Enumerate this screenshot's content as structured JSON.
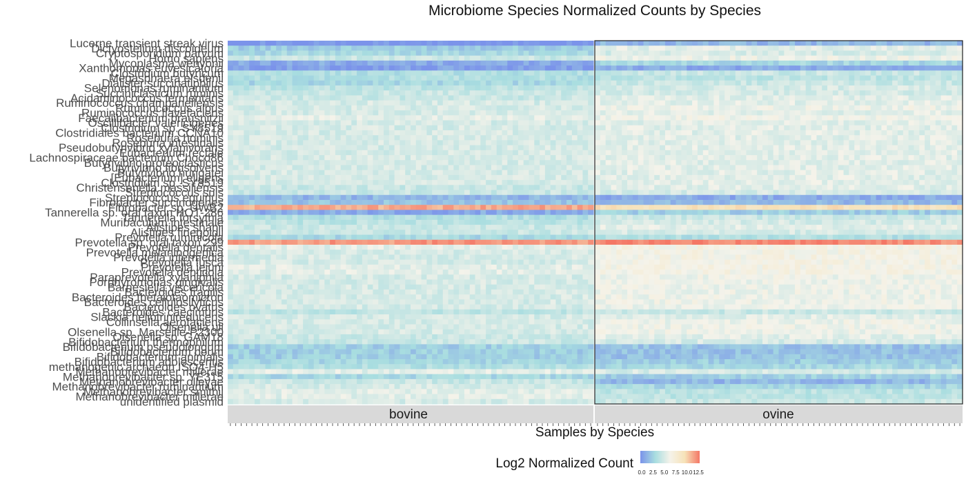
{
  "chart_data": {
    "type": "heatmap",
    "title": "Microbiome Species Normalized Counts by Species",
    "xlabel": "Samples by Species",
    "ylabel": "",
    "facets": [
      {
        "label": "bovine",
        "n_samples": 68
      },
      {
        "label": "ovine",
        "n_samples": 68
      }
    ],
    "colorbar": {
      "title": "Log2 Normalized Count",
      "range": [
        0,
        12.5
      ],
      "ticks": [
        0.0,
        2.5,
        5.0,
        7.5,
        10.0,
        12.5
      ],
      "tick_labels": [
        "0.0",
        "2.5",
        "5.0",
        "7.5",
        "10.0",
        "12.5"
      ],
      "colors": [
        "#7b93ea",
        "#a8dde0",
        "#f5f3ea",
        "#f6e2b8",
        "#f47766"
      ]
    },
    "rows": [
      {
        "species": "Lucerne transient streak virus",
        "bovine": 0.0,
        "ovine": 1.5
      },
      {
        "species": "Dictyostelium discoideum",
        "bovine": 2.5,
        "ovine": 5.5
      },
      {
        "species": "Cryptosporidium parvum",
        "bovine": 3.0,
        "ovine": 5.0
      },
      {
        "species": "Homo sapiens",
        "bovine": 4.5,
        "ovine": 6.0
      },
      {
        "species": "Mycoplasma wenyonii",
        "bovine": 1.0,
        "ovine": 3.0
      },
      {
        "species": "Xanthomonas euvesicatoria",
        "bovine": 0.5,
        "ovine": 1.0
      },
      {
        "species": "Clostridium butyricum",
        "bovine": 3.5,
        "ovine": 4.5
      },
      {
        "species": "Megasphaera elsdenii",
        "bovine": 3.5,
        "ovine": 4.0
      },
      {
        "species": "Dialister succinatiphilus",
        "bovine": 3.0,
        "ovine": 4.5
      },
      {
        "species": "Selenomonas ruminantium",
        "bovine": 4.0,
        "ovine": 5.0
      },
      {
        "species": "Succiniclasticum ruminis",
        "bovine": 4.5,
        "ovine": 5.0
      },
      {
        "species": "Acidaminococcus fermentans",
        "bovine": 4.5,
        "ovine": 5.5
      },
      {
        "species": "Ruminococcus champanellensis",
        "bovine": 5.0,
        "ovine": 5.5
      },
      {
        "species": "Ruminococcus albus",
        "bovine": 5.0,
        "ovine": 6.0
      },
      {
        "species": "Ruminococcus flavefaciens",
        "bovine": 5.0,
        "ovine": 5.5
      },
      {
        "species": "Faecalibacterium prausnitzii",
        "bovine": 5.5,
        "ovine": 6.0
      },
      {
        "species": "Oscillibacter valericigenes",
        "bovine": 5.0,
        "ovine": 5.5
      },
      {
        "species": "Clostridium sp. SY8519",
        "bovine": 5.0,
        "ovine": 5.5
      },
      {
        "species": "Clostridiales bacterium CCNA10",
        "bovine": 5.0,
        "ovine": 5.5
      },
      {
        "species": "Roseburia hominis",
        "bovine": 5.0,
        "ovine": 5.5
      },
      {
        "species": "Roseburia intestinalis",
        "bovine": 5.0,
        "ovine": 5.5
      },
      {
        "species": "Pseudobutyrivibrio xylanivorans",
        "bovine": 5.0,
        "ovine": 5.5
      },
      {
        "species": "Eubacterium rectale",
        "bovine": 5.0,
        "ovine": 5.5
      },
      {
        "species": "Lachnospiraceae bacterium Choco86",
        "bovine": 5.0,
        "ovine": 5.5
      },
      {
        "species": "Butyrivibrio proteoclasticus",
        "bovine": 5.0,
        "ovine": 5.5
      },
      {
        "species": "Butyrivibrio fibrisolvens",
        "bovine": 5.0,
        "ovine": 5.5
      },
      {
        "species": "Butyrivibrio hungatei",
        "bovine": 5.0,
        "ovine": 5.5
      },
      {
        "species": "[Eubacterium] eligens",
        "bovine": 5.0,
        "ovine": 5.5
      },
      {
        "species": "Clostridium sp. SY8519",
        "bovine": 5.0,
        "ovine": 5.5
      },
      {
        "species": "Christensenella massiliensis",
        "bovine": 4.5,
        "ovine": 5.5
      },
      {
        "species": "Streptococcus suis",
        "bovine": 4.5,
        "ovine": 5.0
      },
      {
        "species": "Streptococcus equinus",
        "bovine": 1.5,
        "ovine": 1.0
      },
      {
        "species": "Fibrobacter succinogenes",
        "bovine": 2.0,
        "ovine": 1.5
      },
      {
        "species": "Fibrobacter sp. UWB2",
        "bovine": 11.0,
        "ovine": 9.0
      },
      {
        "species": "Tannerella sp. oral taxon HOT-286",
        "bovine": 1.0,
        "ovine": 2.5
      },
      {
        "species": "Tannerella forsythia",
        "bovine": 3.5,
        "ovine": 4.5
      },
      {
        "species": "Muribaculum intestinale",
        "bovine": 4.0,
        "ovine": 5.0
      },
      {
        "species": "Alistipes shahii",
        "bovine": 4.5,
        "ovine": 5.5
      },
      {
        "species": "Alistipes finegoldii",
        "bovine": 4.5,
        "ovine": 5.0
      },
      {
        "species": "Prevotella ruminicola",
        "bovine": 3.0,
        "ovine": 3.5
      },
      {
        "species": "Prevotella sp. oral taxon 299",
        "bovine": 11.5,
        "ovine": 12.0
      },
      {
        "species": "Prevotella dentalis",
        "bovine": 5.5,
        "ovine": 6.5
      },
      {
        "species": "Prevotella melaninogenica",
        "bovine": 5.0,
        "ovine": 6.5
      },
      {
        "species": "Prevotella intermedia",
        "bovine": 5.0,
        "ovine": 6.5
      },
      {
        "species": "Prevotella fusca",
        "bovine": 5.0,
        "ovine": 6.5
      },
      {
        "species": "Prevotella jejuni",
        "bovine": 5.5,
        "ovine": 6.5
      },
      {
        "species": "Prevotella denticola",
        "bovine": 5.5,
        "ovine": 6.5
      },
      {
        "species": "Paraprevotella xylaniphila",
        "bovine": 5.0,
        "ovine": 6.0
      },
      {
        "species": "Porphyromonas gingivalis",
        "bovine": 5.0,
        "ovine": 6.0
      },
      {
        "species": "Barnesiella viscericola",
        "bovine": 5.0,
        "ovine": 6.0
      },
      {
        "species": "Bacteroides fragilis",
        "bovine": 5.0,
        "ovine": 6.0
      },
      {
        "species": "Bacteroides thetaiotaomicron",
        "bovine": 5.0,
        "ovine": 6.0
      },
      {
        "species": "Bacteroides cellulosilyticus",
        "bovine": 5.0,
        "ovine": 6.0
      },
      {
        "species": "Bacteroides ovatus",
        "bovine": 5.0,
        "ovine": 6.0
      },
      {
        "species": "Bacteroides caecimuris",
        "bovine": 4.0,
        "ovine": 4.5
      },
      {
        "species": "Slackia heliotrinireducens",
        "bovine": 5.0,
        "ovine": 5.5
      },
      {
        "species": "Collinsella aerofaciens",
        "bovine": 5.0,
        "ovine": 6.0
      },
      {
        "species": "Olsenella uli",
        "bovine": 5.0,
        "ovine": 6.0
      },
      {
        "species": "Olsenella sp. Marseille-P2300",
        "bovine": 5.0,
        "ovine": 6.0
      },
      {
        "species": "Olsenella sp. GAM18",
        "bovine": 4.5,
        "ovine": 5.5
      },
      {
        "species": "Bifidobacterium thermophilum",
        "bovine": 4.5,
        "ovine": 5.0
      },
      {
        "species": "Bifidobacterium pseudolongum",
        "bovine": 2.5,
        "ovine": 2.0
      },
      {
        "species": "Bifidobacterium boum",
        "bovine": 2.5,
        "ovine": 2.0
      },
      {
        "species": "Bifidobacterium animalis",
        "bovine": 2.5,
        "ovine": 2.0
      },
      {
        "species": "Bifidobacterium adolescentis",
        "bovine": 3.0,
        "ovine": 2.5
      },
      {
        "species": "methanogenic archaeon ISO4-H5",
        "bovine": 3.5,
        "ovine": 3.0
      },
      {
        "species": "Methanobrevibacter millerae",
        "bovine": 5.5,
        "ovine": 5.0
      },
      {
        "species": "Methanobrevibacter sp. YE315",
        "bovine": 3.0,
        "ovine": 2.5
      },
      {
        "species": "Methanobrevibacter olleyae",
        "bovine": 4.5,
        "ovine": 1.5
      },
      {
        "species": "Methanobrevibacter ruminantium",
        "bovine": 5.0,
        "ovine": 3.0
      },
      {
        "species": "Methanobrevibacter smithii",
        "bovine": 5.5,
        "ovine": 4.0
      },
      {
        "species": "Methanobrevibacter millerae",
        "bovine": 5.5,
        "ovine": 4.0
      },
      {
        "species": "unidentified plasmid",
        "bovine": 5.0,
        "ovine": 4.5
      }
    ]
  }
}
